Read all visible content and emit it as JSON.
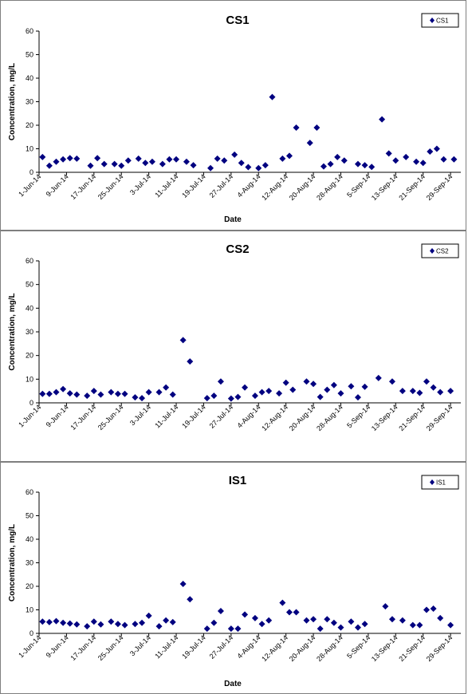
{
  "chart_data": [
    {
      "type": "scatter",
      "title": "CS1",
      "xlabel": "Date",
      "ylabel": "Concentration, mg/L",
      "ylim": [
        0,
        60
      ],
      "yticks": [
        "0",
        "10",
        "20",
        "30",
        "40",
        "50",
        "60"
      ],
      "xlim": [
        "2014-06-01",
        "2014-10-02"
      ],
      "xticks": [
        {
          "date": "2014-06-01",
          "label": "1-Jun-14"
        },
        {
          "date": "2014-06-09",
          "label": "9-Jun-14"
        },
        {
          "date": "2014-06-17",
          "label": "17-Jun-14"
        },
        {
          "date": "2014-06-25",
          "label": "25-Jun-14"
        },
        {
          "date": "2014-07-03",
          "label": "3-Jul-14"
        },
        {
          "date": "2014-07-11",
          "label": "11-Jul-14"
        },
        {
          "date": "2014-07-19",
          "label": "19-Jul-14"
        },
        {
          "date": "2014-07-27",
          "label": "27-Jul-14"
        },
        {
          "date": "2014-08-04",
          "label": "4-Aug-14"
        },
        {
          "date": "2014-08-12",
          "label": "12-Aug-14"
        },
        {
          "date": "2014-08-20",
          "label": "20-Aug-14"
        },
        {
          "date": "2014-08-28",
          "label": "28-Aug-14"
        },
        {
          "date": "2014-09-05",
          "label": "5-Sep-14"
        },
        {
          "date": "2014-09-13",
          "label": "13-Sep-14"
        },
        {
          "date": "2014-09-21",
          "label": "21-Sep-14"
        },
        {
          "date": "2014-09-29",
          "label": "29-Sep-14"
        }
      ],
      "legend": {
        "label": "CS1",
        "position": "top-right"
      },
      "marker_color": "#000080",
      "grid": false,
      "points": [
        [
          "2014-06-02",
          6.5
        ],
        [
          "2014-06-04",
          2.8
        ],
        [
          "2014-06-06",
          4.5
        ],
        [
          "2014-06-08",
          5.5
        ],
        [
          "2014-06-10",
          6.0
        ],
        [
          "2014-06-12",
          5.8
        ],
        [
          "2014-06-16",
          2.8
        ],
        [
          "2014-06-18",
          6.0
        ],
        [
          "2014-06-20",
          3.5
        ],
        [
          "2014-06-23",
          3.5
        ],
        [
          "2014-06-25",
          2.8
        ],
        [
          "2014-06-27",
          5.0
        ],
        [
          "2014-06-30",
          5.8
        ],
        [
          "2014-07-02",
          4.0
        ],
        [
          "2014-07-04",
          4.5
        ],
        [
          "2014-07-07",
          3.5
        ],
        [
          "2014-07-09",
          5.5
        ],
        [
          "2014-07-11",
          5.5
        ],
        [
          "2014-07-14",
          4.5
        ],
        [
          "2014-07-16",
          3.0
        ],
        [
          "2014-07-21",
          1.8
        ],
        [
          "2014-07-23",
          5.8
        ],
        [
          "2014-07-25",
          5.0
        ],
        [
          "2014-07-28",
          7.5
        ],
        [
          "2014-07-30",
          4.0
        ],
        [
          "2014-08-01",
          2.2
        ],
        [
          "2014-08-04",
          1.8
        ],
        [
          "2014-08-06",
          3.0
        ],
        [
          "2014-08-08",
          32.0
        ],
        [
          "2014-08-11",
          5.8
        ],
        [
          "2014-08-13",
          7.0
        ],
        [
          "2014-08-15",
          19.0
        ],
        [
          "2014-08-19",
          12.5
        ],
        [
          "2014-08-21",
          19.0
        ],
        [
          "2014-08-23",
          2.5
        ],
        [
          "2014-08-25",
          3.5
        ],
        [
          "2014-08-27",
          6.5
        ],
        [
          "2014-08-29",
          5.0
        ],
        [
          "2014-09-02",
          3.5
        ],
        [
          "2014-09-04",
          3.0
        ],
        [
          "2014-09-06",
          2.3
        ],
        [
          "2014-09-09",
          22.5
        ],
        [
          "2014-09-11",
          8.0
        ],
        [
          "2014-09-13",
          5.0
        ],
        [
          "2014-09-16",
          6.5
        ],
        [
          "2014-09-19",
          4.5
        ],
        [
          "2014-09-21",
          4.0
        ],
        [
          "2014-09-23",
          8.8
        ],
        [
          "2014-09-25",
          10.0
        ],
        [
          "2014-09-27",
          5.5
        ],
        [
          "2014-09-30",
          5.5
        ]
      ]
    },
    {
      "type": "scatter",
      "title": "CS2",
      "xlabel": "",
      "ylabel": "Concentration, mg/L",
      "ylim": [
        0,
        60
      ],
      "yticks": [
        "0",
        "10",
        "20",
        "30",
        "40",
        "50",
        "60"
      ],
      "xlim": [
        "2014-06-01",
        "2014-10-02"
      ],
      "xticks": [
        {
          "date": "2014-06-01",
          "label": "1-Jun-14"
        },
        {
          "date": "2014-06-09",
          "label": "9-Jun-14"
        },
        {
          "date": "2014-06-17",
          "label": "17-Jun-14"
        },
        {
          "date": "2014-06-25",
          "label": "25-Jun-14"
        },
        {
          "date": "2014-07-03",
          "label": "3-Jul-14"
        },
        {
          "date": "2014-07-11",
          "label": "11-Jul-14"
        },
        {
          "date": "2014-07-19",
          "label": "19-Jul-14"
        },
        {
          "date": "2014-07-27",
          "label": "27-Jul-14"
        },
        {
          "date": "2014-08-04",
          "label": "4-Aug-14"
        },
        {
          "date": "2014-08-12",
          "label": "12-Aug-14"
        },
        {
          "date": "2014-08-20",
          "label": "20-Aug-14"
        },
        {
          "date": "2014-08-28",
          "label": "28-Aug-14"
        },
        {
          "date": "2014-09-05",
          "label": "5-Sep-14"
        },
        {
          "date": "2014-09-13",
          "label": "13-Sep-14"
        },
        {
          "date": "2014-09-21",
          "label": "21-Sep-14"
        },
        {
          "date": "2014-09-29",
          "label": "29-Sep-14"
        }
      ],
      "legend": {
        "label": "CS2",
        "position": "top-right"
      },
      "marker_color": "#000080",
      "grid": false,
      "points": [
        [
          "2014-06-02",
          3.8
        ],
        [
          "2014-06-04",
          3.8
        ],
        [
          "2014-06-06",
          4.5
        ],
        [
          "2014-06-08",
          5.8
        ],
        [
          "2014-06-10",
          4.0
        ],
        [
          "2014-06-12",
          3.5
        ],
        [
          "2014-06-15",
          3.0
        ],
        [
          "2014-06-17",
          5.0
        ],
        [
          "2014-06-19",
          3.5
        ],
        [
          "2014-06-22",
          4.5
        ],
        [
          "2014-06-24",
          3.8
        ],
        [
          "2014-06-26",
          3.8
        ],
        [
          "2014-06-29",
          2.3
        ],
        [
          "2014-07-01",
          2.0
        ],
        [
          "2014-07-03",
          4.5
        ],
        [
          "2014-07-06",
          4.5
        ],
        [
          "2014-07-08",
          6.5
        ],
        [
          "2014-07-10",
          3.5
        ],
        [
          "2014-07-13",
          26.5
        ],
        [
          "2014-07-15",
          17.5
        ],
        [
          "2014-07-20",
          2.0
        ],
        [
          "2014-07-22",
          3.0
        ],
        [
          "2014-07-24",
          9.0
        ],
        [
          "2014-07-27",
          1.8
        ],
        [
          "2014-07-29",
          2.5
        ],
        [
          "2014-07-31",
          6.5
        ],
        [
          "2014-08-03",
          3.0
        ],
        [
          "2014-08-05",
          4.5
        ],
        [
          "2014-08-07",
          5.0
        ],
        [
          "2014-08-10",
          4.0
        ],
        [
          "2014-08-12",
          8.5
        ],
        [
          "2014-08-14",
          5.5
        ],
        [
          "2014-08-18",
          9.0
        ],
        [
          "2014-08-20",
          8.0
        ],
        [
          "2014-08-22",
          2.5
        ],
        [
          "2014-08-24",
          5.5
        ],
        [
          "2014-08-26",
          7.5
        ],
        [
          "2014-08-28",
          4.0
        ],
        [
          "2014-08-31",
          7.0
        ],
        [
          "2014-09-02",
          2.3
        ],
        [
          "2014-09-04",
          6.8
        ],
        [
          "2014-09-08",
          10.5
        ],
        [
          "2014-09-12",
          9.0
        ],
        [
          "2014-09-15",
          5.0
        ],
        [
          "2014-09-18",
          5.0
        ],
        [
          "2014-09-20",
          4.2
        ],
        [
          "2014-09-22",
          9.0
        ],
        [
          "2014-09-24",
          6.5
        ],
        [
          "2014-09-26",
          4.5
        ],
        [
          "2014-09-29",
          5.0
        ]
      ]
    },
    {
      "type": "scatter",
      "title": "IS1",
      "xlabel": "Date",
      "ylabel": "Concentration, mg/L",
      "ylim": [
        0,
        60
      ],
      "yticks": [
        "0",
        "10",
        "20",
        "30",
        "40",
        "50",
        "60"
      ],
      "xlim": [
        "2014-06-01",
        "2014-10-02"
      ],
      "xticks": [
        {
          "date": "2014-06-01",
          "label": "1-Jun-14"
        },
        {
          "date": "2014-06-09",
          "label": "9-Jun-14"
        },
        {
          "date": "2014-06-17",
          "label": "17-Jun-14"
        },
        {
          "date": "2014-06-25",
          "label": "25-Jun-14"
        },
        {
          "date": "2014-07-03",
          "label": "3-Jul-14"
        },
        {
          "date": "2014-07-11",
          "label": "11-Jul-14"
        },
        {
          "date": "2014-07-19",
          "label": "19-Jul-14"
        },
        {
          "date": "2014-07-27",
          "label": "27-Jul-14"
        },
        {
          "date": "2014-08-04",
          "label": "4-Aug-14"
        },
        {
          "date": "2014-08-12",
          "label": "12-Aug-14"
        },
        {
          "date": "2014-08-20",
          "label": "20-Aug-14"
        },
        {
          "date": "2014-08-28",
          "label": "28-Aug-14"
        },
        {
          "date": "2014-09-05",
          "label": "5-Sep-14"
        },
        {
          "date": "2014-09-13",
          "label": "13-Sep-14"
        },
        {
          "date": "2014-09-21",
          "label": "21-Sep-14"
        },
        {
          "date": "2014-09-29",
          "label": "29-Sep-14"
        }
      ],
      "legend": {
        "label": "IS1",
        "position": "top-right"
      },
      "marker_color": "#000080",
      "grid": false,
      "points": [
        [
          "2014-06-02",
          5.0
        ],
        [
          "2014-06-04",
          4.8
        ],
        [
          "2014-06-06",
          5.2
        ],
        [
          "2014-06-08",
          4.5
        ],
        [
          "2014-06-10",
          4.2
        ],
        [
          "2014-06-12",
          3.8
        ],
        [
          "2014-06-15",
          3.0
        ],
        [
          "2014-06-17",
          5.0
        ],
        [
          "2014-06-19",
          3.8
        ],
        [
          "2014-06-22",
          5.0
        ],
        [
          "2014-06-24",
          4.0
        ],
        [
          "2014-06-26",
          3.5
        ],
        [
          "2014-06-29",
          4.0
        ],
        [
          "2014-07-01",
          4.5
        ],
        [
          "2014-07-03",
          7.5
        ],
        [
          "2014-07-06",
          3.0
        ],
        [
          "2014-07-08",
          5.5
        ],
        [
          "2014-07-10",
          4.8
        ],
        [
          "2014-07-13",
          21.0
        ],
        [
          "2014-07-15",
          14.5
        ],
        [
          "2014-07-20",
          2.0
        ],
        [
          "2014-07-22",
          4.5
        ],
        [
          "2014-07-24",
          9.5
        ],
        [
          "2014-07-27",
          2.0
        ],
        [
          "2014-07-29",
          2.0
        ],
        [
          "2014-07-31",
          8.0
        ],
        [
          "2014-08-03",
          6.5
        ],
        [
          "2014-08-05",
          4.0
        ],
        [
          "2014-08-07",
          5.5
        ],
        [
          "2014-08-11",
          13.0
        ],
        [
          "2014-08-13",
          9.0
        ],
        [
          "2014-08-15",
          9.0
        ],
        [
          "2014-08-18",
          5.5
        ],
        [
          "2014-08-20",
          6.0
        ],
        [
          "2014-08-22",
          2.0
        ],
        [
          "2014-08-24",
          6.0
        ],
        [
          "2014-08-26",
          4.5
        ],
        [
          "2014-08-28",
          2.5
        ],
        [
          "2014-08-31",
          5.0
        ],
        [
          "2014-09-02",
          2.5
        ],
        [
          "2014-09-04",
          4.0
        ],
        [
          "2014-09-10",
          11.5
        ],
        [
          "2014-09-12",
          6.0
        ],
        [
          "2014-09-15",
          5.5
        ],
        [
          "2014-09-18",
          3.5
        ],
        [
          "2014-09-20",
          3.5
        ],
        [
          "2014-09-22",
          10.0
        ],
        [
          "2014-09-24",
          10.5
        ],
        [
          "2014-09-26",
          6.5
        ],
        [
          "2014-09-29",
          3.5
        ]
      ]
    }
  ]
}
